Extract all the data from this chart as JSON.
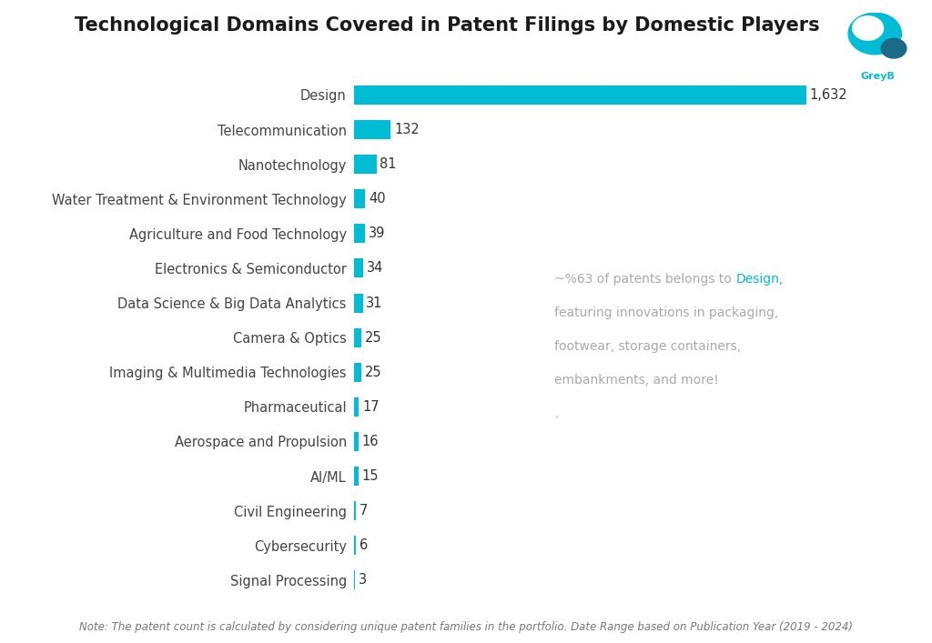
{
  "title": "Technological Domains Covered in Patent Filings by Domestic Players",
  "categories": [
    "Design",
    "Telecommunication",
    "Nanotechnology",
    "Water Treatment & Environment Technology",
    "Agriculture and Food Technology",
    "Electronics & Semiconductor",
    "Data Science & Big Data Analytics",
    "Camera & Optics",
    "Imaging & Multimedia Technologies",
    "Pharmaceutical",
    "Aerospace and Propulsion",
    "AI/ML",
    "Civil Engineering",
    "Cybersecurity",
    "Signal Processing"
  ],
  "values": [
    1632,
    132,
    81,
    40,
    39,
    34,
    31,
    25,
    25,
    17,
    16,
    15,
    7,
    6,
    3
  ],
  "bar_color": "#00BCD4",
  "background_color": "#ffffff",
  "title_fontsize": 15,
  "label_fontsize": 10.5,
  "value_fontsize": 10.5,
  "annotation_line1_pre": "~%63 of patents belongs to ",
  "annotation_line1_highlight": "Design,",
  "annotation_line2": "featuring innovations in packaging,",
  "annotation_line3": "footwear, storage containers,",
  "annotation_line4": "embankments, and more!",
  "annotation_period": ".",
  "annotation_color": "#aaaaaa",
  "annotation_highlight_color": "#00BCD4",
  "note_text": "Note: The patent count is calculated by considering unique patent families in the portfolio. Date Range based on Publication Year (2019 - 2024)",
  "note_fontsize": 8.5,
  "greyb_color": "#00BCD4",
  "greyb_dot_color": "#1a6b8a"
}
